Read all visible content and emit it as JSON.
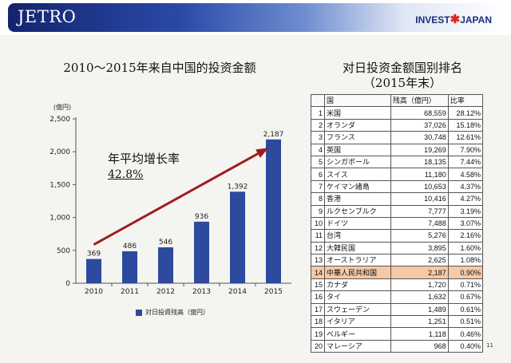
{
  "header": {
    "logo_left": "JETRO",
    "logo_right_a": "INVEST",
    "logo_right_b": "JAPAN"
  },
  "chart_title": "2010～2015年来自中国的投资金额",
  "annotation": {
    "line1": "年平均增长率",
    "line2": "42.8%"
  },
  "legend_label": "対日投資残高（億円）",
  "chart_data": {
    "type": "bar",
    "title": "2010～2015年来自中国的投资金额",
    "ylabel": "(億円)",
    "xlabel": "",
    "categories": [
      "2010",
      "2011",
      "2012",
      "2013",
      "2014",
      "2015"
    ],
    "values": [
      369,
      486,
      546,
      936,
      1392,
      2187
    ],
    "value_labels": [
      "369",
      "486",
      "546",
      "936",
      "1,392",
      "2,187"
    ],
    "yticks": [
      0,
      500,
      1000,
      1500,
      2000,
      2500
    ],
    "ytick_labels": [
      "0",
      "500",
      "1,000",
      "1,500",
      "2,000",
      "2,500"
    ],
    "ylim": [
      0,
      2500
    ],
    "grid": false,
    "legend_position": "bottom",
    "series_name": "対日投資残高（億円）",
    "bar_color": "#2e4a9e",
    "arrow_color": "#a01c22"
  },
  "table": {
    "title_line1": "对日投资金额国别排名",
    "title_line2": "（2015年末）",
    "headers": [
      "国",
      "残高（億円）",
      "比率"
    ],
    "highlight_rank": 14,
    "highlight_color": "#f5c8a6",
    "rows": [
      {
        "rank": "1",
        "country": "米国",
        "amount": "68,559",
        "ratio": "28.12%"
      },
      {
        "rank": "2",
        "country": "オランダ",
        "amount": "37,026",
        "ratio": "15.18%"
      },
      {
        "rank": "3",
        "country": "フランス",
        "amount": "30,748",
        "ratio": "12.61%"
      },
      {
        "rank": "4",
        "country": "英国",
        "amount": "19,269",
        "ratio": "7.90%"
      },
      {
        "rank": "5",
        "country": "シンガポール",
        "amount": "18,135",
        "ratio": "7.44%"
      },
      {
        "rank": "6",
        "country": "スイス",
        "amount": "11,180",
        "ratio": "4.58%"
      },
      {
        "rank": "7",
        "country": "ケイマン諸島",
        "amount": "10,653",
        "ratio": "4.37%"
      },
      {
        "rank": "8",
        "country": "香港",
        "amount": "10,416",
        "ratio": "4.27%"
      },
      {
        "rank": "9",
        "country": "ルクセンブルク",
        "amount": "7,777",
        "ratio": "3.19%"
      },
      {
        "rank": "10",
        "country": "ドイツ",
        "amount": "7,488",
        "ratio": "3.07%"
      },
      {
        "rank": "11",
        "country": "台湾",
        "amount": "5,276",
        "ratio": "2.16%"
      },
      {
        "rank": "12",
        "country": "大韓民国",
        "amount": "3,895",
        "ratio": "1.60%"
      },
      {
        "rank": "13",
        "country": "オーストラリア",
        "amount": "2,625",
        "ratio": "1.08%"
      },
      {
        "rank": "14",
        "country": "中華人民共和国",
        "amount": "2,187",
        "ratio": "0.90%"
      },
      {
        "rank": "15",
        "country": "カナダ",
        "amount": "1,720",
        "ratio": "0.71%"
      },
      {
        "rank": "16",
        "country": "タイ",
        "amount": "1,632",
        "ratio": "0.67%"
      },
      {
        "rank": "17",
        "country": "スウェーデン",
        "amount": "1,489",
        "ratio": "0.61%"
      },
      {
        "rank": "18",
        "country": "イタリア",
        "amount": "1,251",
        "ratio": "0.51%"
      },
      {
        "rank": "19",
        "country": "ベルギー",
        "amount": "1,118",
        "ratio": "0.46%"
      },
      {
        "rank": "20",
        "country": "マレーシア",
        "amount": "968",
        "ratio": "0.40%"
      }
    ]
  },
  "page_number": "11"
}
